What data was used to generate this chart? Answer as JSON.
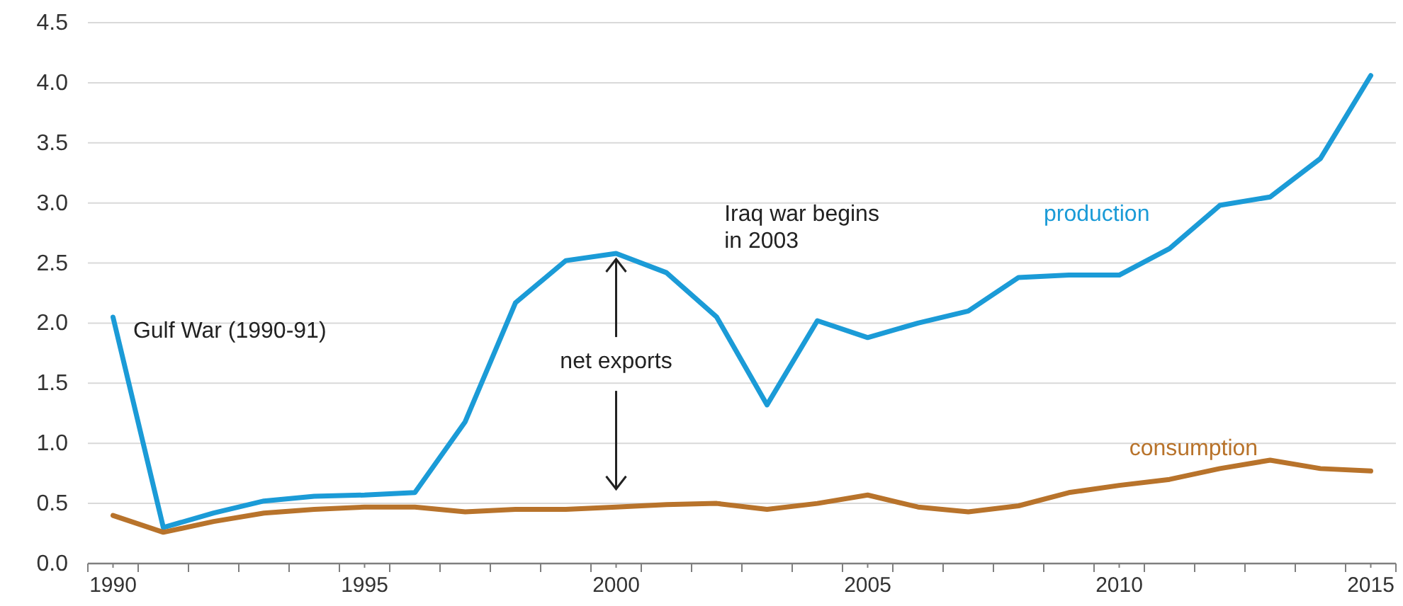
{
  "chart_data": {
    "type": "line",
    "x": [
      1990,
      1991,
      1992,
      1993,
      1994,
      1995,
      1996,
      1997,
      1998,
      1999,
      2000,
      2001,
      2002,
      2003,
      2004,
      2005,
      2006,
      2007,
      2008,
      2009,
      2010,
      2011,
      2012,
      2013,
      2014,
      2015
    ],
    "series": [
      {
        "name": "production",
        "color": "#1b9bd7",
        "values": [
          2.05,
          0.3,
          0.42,
          0.52,
          0.56,
          0.57,
          0.59,
          1.18,
          2.17,
          2.52,
          2.58,
          2.42,
          2.05,
          1.32,
          2.02,
          1.88,
          2.0,
          2.1,
          2.38,
          2.4,
          2.4,
          2.62,
          2.98,
          3.05,
          3.37,
          4.06
        ]
      },
      {
        "name": "consumption",
        "color": "#b8732b",
        "values": [
          0.4,
          0.26,
          0.35,
          0.42,
          0.45,
          0.47,
          0.47,
          0.43,
          0.45,
          0.45,
          0.47,
          0.49,
          0.5,
          0.45,
          0.5,
          0.57,
          0.47,
          0.43,
          0.48,
          0.59,
          0.65,
          0.7,
          0.79,
          0.86,
          0.79,
          0.77
        ]
      }
    ],
    "xlim": [
      1989.5,
      2015.5
    ],
    "xticks": [
      {
        "value": 1989.5,
        "label": null
      },
      {
        "value": 1990,
        "label": "1990"
      },
      {
        "value": 1990.5,
        "label": null
      },
      {
        "value": 1991.5,
        "label": null
      },
      {
        "value": 1992.5,
        "label": null
      },
      {
        "value": 1993.5,
        "label": null
      },
      {
        "value": 1994.5,
        "label": null
      },
      {
        "value": 1995,
        "label": "1995"
      },
      {
        "value": 1995.5,
        "label": null
      },
      {
        "value": 1996.5,
        "label": null
      },
      {
        "value": 1997.5,
        "label": null
      },
      {
        "value": 1998.5,
        "label": null
      },
      {
        "value": 1999.5,
        "label": null
      },
      {
        "value": 2000,
        "label": "2000"
      },
      {
        "value": 2000.5,
        "label": null
      },
      {
        "value": 2001.5,
        "label": null
      },
      {
        "value": 2002.5,
        "label": null
      },
      {
        "value": 2003.5,
        "label": null
      },
      {
        "value": 2004.5,
        "label": null
      },
      {
        "value": 2005,
        "label": "2005"
      },
      {
        "value": 2005.5,
        "label": null
      },
      {
        "value": 2006.5,
        "label": null
      },
      {
        "value": 2007.5,
        "label": null
      },
      {
        "value": 2008.5,
        "label": null
      },
      {
        "value": 2009.5,
        "label": null
      },
      {
        "value": 2010,
        "label": "2010"
      },
      {
        "value": 2010.5,
        "label": null
      },
      {
        "value": 2011.5,
        "label": null
      },
      {
        "value": 2012.5,
        "label": null
      },
      {
        "value": 2013.5,
        "label": null
      },
      {
        "value": 2014.5,
        "label": null
      },
      {
        "value": 2015,
        "label": "2015"
      },
      {
        "value": 2015.5,
        "label": null
      }
    ],
    "ylim": [
      0,
      4.5
    ],
    "yticks": [
      {
        "value": 0,
        "label": "0.0"
      },
      {
        "value": 0.5,
        "label": "0.5"
      },
      {
        "value": 1,
        "label": "1.0"
      },
      {
        "value": 1.5,
        "label": "1.5"
      },
      {
        "value": 2,
        "label": "2.0"
      },
      {
        "value": 2.5,
        "label": "2.5"
      },
      {
        "value": 3,
        "label": "3.0"
      },
      {
        "value": 3.5,
        "label": "3.5"
      },
      {
        "value": 4,
        "label": "4.0"
      },
      {
        "value": 4.5,
        "label": "4.5"
      }
    ],
    "grid": "y",
    "marker": "none",
    "line_style": "solid",
    "annotations": [
      "Gulf War (1990-91)",
      {
        "text": "net exports",
        "x": 2000,
        "y": 2.58
      },
      "Iraq war begins\nin 2003"
    ]
  }
}
